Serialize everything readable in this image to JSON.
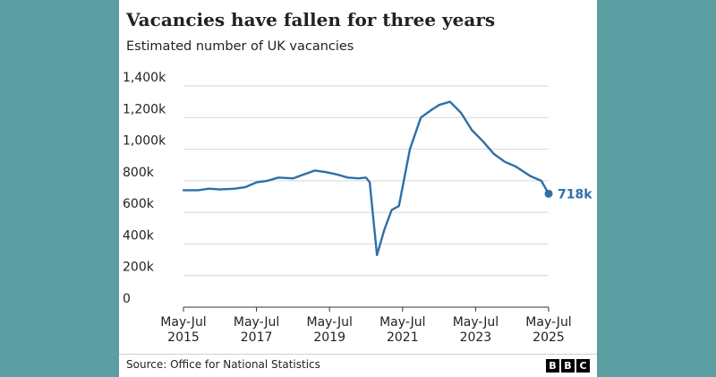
{
  "header": {
    "title": "Vacancies have fallen for three years",
    "subtitle": "Estimated number of UK vacancies"
  },
  "footer": {
    "source": "Source: Office for National Statistics",
    "logo_letters": [
      "B",
      "B",
      "C"
    ]
  },
  "colors": {
    "line": "#2e6fa7",
    "grid": "#d6d6d6",
    "background": "#5b9fa3",
    "text": "#222222"
  },
  "chart_data": {
    "type": "line",
    "title": "Vacancies have fallen for three years",
    "subtitle": "Estimated number of UK vacancies",
    "xlabel": "",
    "ylabel": "",
    "ylim": [
      0,
      1400000
    ],
    "yticks": [
      0,
      200000,
      400000,
      600000,
      800000,
      1000000,
      1200000,
      1400000
    ],
    "ytick_labels": [
      "0",
      "200k",
      "400k",
      "600k",
      "800k",
      "1,000k",
      "1,200k",
      "1,400k"
    ],
    "xlim": [
      2015,
      2025
    ],
    "xticks": [
      2015,
      2017,
      2019,
      2021,
      2023,
      2025
    ],
    "xtick_labels": [
      [
        "May-Jul",
        "2015"
      ],
      [
        "May-Jul",
        "2017"
      ],
      [
        "May-Jul",
        "2019"
      ],
      [
        "May-Jul",
        "2021"
      ],
      [
        "May-Jul",
        "2023"
      ],
      [
        "May-Jul",
        "2025"
      ]
    ],
    "grid": true,
    "end_label": "718k",
    "series": [
      {
        "x": [
          2015,
          2015.4,
          2015.7,
          2016,
          2016.4,
          2016.7,
          2017,
          2017.3,
          2017.6,
          2018,
          2018.3,
          2018.6,
          2018.9,
          2019.2,
          2019.5,
          2019.8,
          2020.0,
          2020.1,
          2020.3,
          2020.5,
          2020.7,
          2020.9,
          2021.2,
          2021.5,
          2021.8,
          2022.0,
          2022.3,
          2022.6,
          2022.9,
          2023.2,
          2023.5,
          2023.8,
          2024.1,
          2024.5,
          2024.8,
          2025
        ],
        "values": [
          740000,
          740000,
          750000,
          745000,
          750000,
          760000,
          790000,
          800000,
          820000,
          815000,
          840000,
          865000,
          855000,
          840000,
          820000,
          815000,
          820000,
          790000,
          330000,
          490000,
          615000,
          640000,
          1000000,
          1200000,
          1250000,
          1280000,
          1300000,
          1230000,
          1120000,
          1050000,
          970000,
          920000,
          890000,
          830000,
          800000,
          718000
        ],
        "end_label": "718k"
      }
    ]
  }
}
